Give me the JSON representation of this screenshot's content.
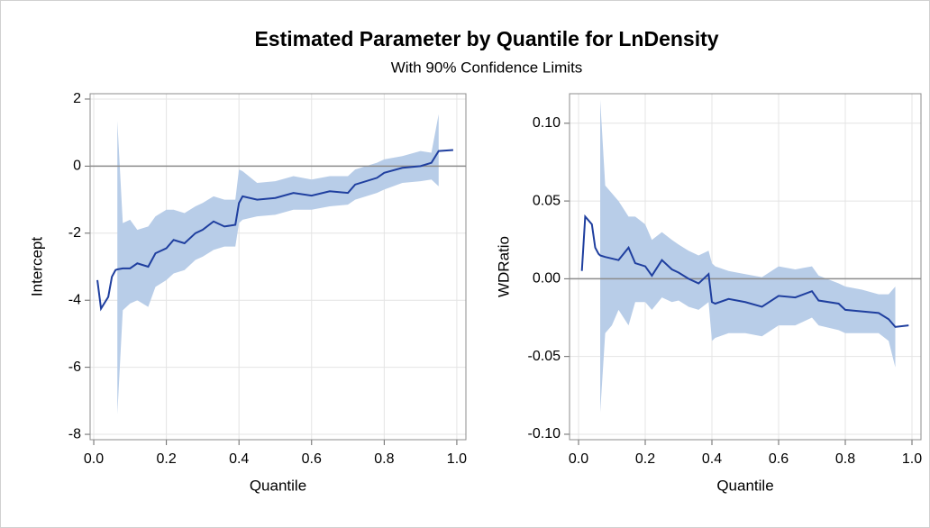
{
  "title": "Estimated Parameter by Quantile for LnDensity",
  "subtitle": "With 90% Confidence Limits",
  "chart_data": [
    {
      "type": "line",
      "xlabel": "Quantile",
      "ylabel": "Intercept",
      "color": "#1f3f9f",
      "band_color": "#b8cde8",
      "grid": true,
      "refline": 0,
      "xlim": [
        -0.01,
        1.025
      ],
      "ylim": [
        -8.16,
        2.16
      ],
      "xticks": [
        {
          "value": 0,
          "label": "0.0"
        },
        0.2,
        0.4,
        0.6,
        0.8,
        {
          "value": 1,
          "label": "1.0"
        }
      ],
      "yticks": [
        -8,
        -6,
        -4,
        -2,
        0,
        2
      ],
      "x": [
        0.01,
        0.02,
        0.04,
        0.05,
        0.06,
        0.065,
        0.08,
        0.1,
        0.12,
        0.15,
        0.17,
        0.2,
        0.22,
        0.25,
        0.28,
        0.3,
        0.33,
        0.36,
        0.39,
        0.4,
        0.41,
        0.45,
        0.5,
        0.55,
        0.6,
        0.65,
        0.7,
        0.72,
        0.78,
        0.8,
        0.85,
        0.9,
        0.93,
        0.95,
        0.99
      ],
      "values": [
        -3.4,
        -4.25,
        -3.9,
        -3.3,
        -3.1,
        -3.08,
        -3.05,
        -3.05,
        -2.9,
        -3.0,
        -2.6,
        -2.45,
        -2.2,
        -2.3,
        -2.0,
        -1.9,
        -1.65,
        -1.8,
        -1.75,
        -1.1,
        -0.9,
        -1.0,
        -0.95,
        -0.8,
        -0.88,
        -0.75,
        -0.8,
        -0.55,
        -0.35,
        -0.2,
        -0.05,
        0.0,
        0.1,
        0.45,
        0.48
      ],
      "lower": [
        null,
        null,
        null,
        null,
        null,
        -7.4,
        -4.3,
        -4.1,
        -4.0,
        -4.2,
        -3.6,
        -3.4,
        -3.2,
        -3.1,
        -2.8,
        -2.7,
        -2.5,
        -2.4,
        -2.4,
        -1.7,
        -1.6,
        -1.5,
        -1.45,
        -1.3,
        -1.3,
        -1.2,
        -1.15,
        -1.0,
        -0.8,
        -0.7,
        -0.5,
        -0.45,
        -0.4,
        -0.6,
        null
      ],
      "upper": [
        null,
        null,
        null,
        null,
        null,
        1.35,
        -1.7,
        -1.6,
        -1.9,
        -1.8,
        -1.5,
        -1.3,
        -1.3,
        -1.4,
        -1.2,
        -1.1,
        -0.9,
        -1.0,
        -1.0,
        -0.1,
        -0.15,
        -0.5,
        -0.45,
        -0.3,
        -0.4,
        -0.3,
        -0.3,
        -0.1,
        0.1,
        0.2,
        0.3,
        0.45,
        0.4,
        1.55,
        null
      ]
    },
    {
      "type": "line",
      "xlabel": "Quantile",
      "ylabel": "WDRatio",
      "color": "#1f3f9f",
      "band_color": "#b8cde8",
      "grid": true,
      "refline": 0,
      "xlim": [
        -0.027,
        1.027
      ],
      "ylim": [
        -0.1035,
        0.119
      ],
      "xticks": [
        {
          "value": 0,
          "label": "0.0"
        },
        0.2,
        0.4,
        0.6,
        0.8,
        {
          "value": 1,
          "label": "1.0"
        }
      ],
      "yticks": [
        {
          "value": -0.1,
          "label": "-0.10"
        },
        {
          "value": -0.05,
          "label": "-0.05"
        },
        {
          "value": 0,
          "label": "0.00"
        },
        {
          "value": 0.05,
          "label": "0.05"
        },
        {
          "value": 0.1,
          "label": "0.10"
        }
      ],
      "x": [
        0.01,
        0.02,
        0.04,
        0.05,
        0.06,
        0.065,
        0.08,
        0.1,
        0.12,
        0.15,
        0.17,
        0.2,
        0.22,
        0.25,
        0.28,
        0.3,
        0.33,
        0.36,
        0.39,
        0.4,
        0.41,
        0.45,
        0.5,
        0.55,
        0.6,
        0.65,
        0.7,
        0.72,
        0.78,
        0.8,
        0.85,
        0.9,
        0.93,
        0.95,
        0.99
      ],
      "values": [
        0.005,
        0.04,
        0.035,
        0.02,
        0.016,
        0.015,
        0.014,
        0.013,
        0.012,
        0.02,
        0.01,
        0.008,
        0.002,
        0.012,
        0.006,
        0.004,
        0.0,
        -0.003,
        0.003,
        -0.015,
        -0.016,
        -0.013,
        -0.015,
        -0.018,
        -0.011,
        -0.012,
        -0.008,
        -0.014,
        -0.016,
        -0.02,
        -0.021,
        -0.022,
        -0.026,
        -0.031,
        -0.03
      ],
      "lower": [
        null,
        null,
        null,
        null,
        null,
        -0.086,
        -0.035,
        -0.03,
        -0.02,
        -0.03,
        -0.015,
        -0.015,
        -0.02,
        -0.012,
        -0.015,
        -0.014,
        -0.018,
        -0.02,
        -0.015,
        -0.04,
        -0.038,
        -0.035,
        -0.035,
        -0.037,
        -0.03,
        -0.03,
        -0.025,
        -0.03,
        -0.033,
        -0.035,
        -0.035,
        -0.035,
        -0.04,
        -0.057,
        null
      ],
      "upper": [
        null,
        null,
        null,
        null,
        null,
        0.115,
        0.06,
        0.055,
        0.05,
        0.04,
        0.04,
        0.035,
        0.025,
        0.03,
        0.025,
        0.022,
        0.018,
        0.015,
        0.018,
        0.01,
        0.008,
        0.005,
        0.003,
        0.001,
        0.008,
        0.006,
        0.008,
        0.002,
        -0.003,
        -0.005,
        -0.007,
        -0.01,
        -0.01,
        -0.005,
        null
      ]
    }
  ]
}
